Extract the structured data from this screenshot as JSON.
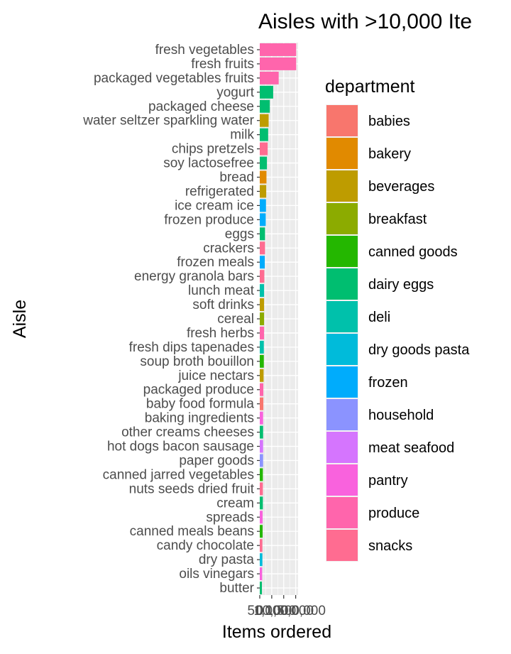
{
  "chart_data": {
    "type": "bar",
    "orientation": "horizontal",
    "title": "Aisles with >10,000 Ite",
    "xlabel": "Items ordered",
    "ylabel": "Aisle",
    "xlim": [
      0,
      1600000
    ],
    "x_ticks": [
      0,
      500000,
      1000000,
      1500000
    ],
    "x_tick_labels": [
      "0",
      "500,000",
      "1,000,000",
      "1,500,000"
    ],
    "grid": true,
    "legend": {
      "title": "department",
      "position": "right",
      "items": [
        {
          "label": "babies",
          "color": "#F8766D"
        },
        {
          "label": "bakery",
          "color": "#E18A00"
        },
        {
          "label": "beverages",
          "color": "#BE9C00"
        },
        {
          "label": "breakfast",
          "color": "#8CAB00"
        },
        {
          "label": "canned goods",
          "color": "#24B700"
        },
        {
          "label": "dairy eggs",
          "color": "#00BE70"
        },
        {
          "label": "deli",
          "color": "#00C1AB"
        },
        {
          "label": "dry goods pasta",
          "color": "#00BBDA"
        },
        {
          "label": "frozen",
          "color": "#00ACFC"
        },
        {
          "label": "household",
          "color": "#8B93FF"
        },
        {
          "label": "meat seafood",
          "color": "#D575FE"
        },
        {
          "label": "pantry",
          "color": "#F962DD"
        },
        {
          "label": "produce",
          "color": "#FF65AC"
        },
        {
          "label": "snacks",
          "color": "#FF6C91"
        }
      ]
    },
    "bars": [
      {
        "aisle": "fresh vegetables",
        "department": "produce",
        "value": 1520000
      },
      {
        "aisle": "fresh fruits",
        "department": "produce",
        "value": 1520000
      },
      {
        "aisle": "packaged vegetables fruits",
        "department": "produce",
        "value": 790000
      },
      {
        "aisle": "yogurt",
        "department": "dairy eggs",
        "value": 560000
      },
      {
        "aisle": "packaged cheese",
        "department": "dairy eggs",
        "value": 420000
      },
      {
        "aisle": "water seltzer sparkling water",
        "department": "beverages",
        "value": 370000
      },
      {
        "aisle": "milk",
        "department": "dairy eggs",
        "value": 350000
      },
      {
        "aisle": "chips pretzels",
        "department": "snacks",
        "value": 330000
      },
      {
        "aisle": "soy lactosefree",
        "department": "dairy eggs",
        "value": 300000
      },
      {
        "aisle": "bread",
        "department": "bakery",
        "value": 280000
      },
      {
        "aisle": "refrigerated",
        "department": "beverages",
        "value": 270000
      },
      {
        "aisle": "ice cream ice",
        "department": "frozen",
        "value": 260000
      },
      {
        "aisle": "frozen produce",
        "department": "frozen",
        "value": 250000
      },
      {
        "aisle": "eggs",
        "department": "dairy eggs",
        "value": 220000
      },
      {
        "aisle": "crackers",
        "department": "snacks",
        "value": 220000
      },
      {
        "aisle": "frozen meals",
        "department": "frozen",
        "value": 210000
      },
      {
        "aisle": "energy granola bars",
        "department": "snacks",
        "value": 190000
      },
      {
        "aisle": "lunch meat",
        "department": "deli",
        "value": 180000
      },
      {
        "aisle": "soft drinks",
        "department": "beverages",
        "value": 180000
      },
      {
        "aisle": "cereal",
        "department": "breakfast",
        "value": 180000
      },
      {
        "aisle": "fresh herbs",
        "department": "produce",
        "value": 180000
      },
      {
        "aisle": "fresh dips tapenades",
        "department": "deli",
        "value": 170000
      },
      {
        "aisle": "soup broth bouillon",
        "department": "canned goods",
        "value": 170000
      },
      {
        "aisle": "juice nectars",
        "department": "beverages",
        "value": 160000
      },
      {
        "aisle": "packaged produce",
        "department": "produce",
        "value": 150000
      },
      {
        "aisle": "baby food formula",
        "department": "babies",
        "value": 150000
      },
      {
        "aisle": "baking ingredients",
        "department": "pantry",
        "value": 140000
      },
      {
        "aisle": "other creams cheeses",
        "department": "dairy eggs",
        "value": 140000
      },
      {
        "aisle": "hot dogs bacon sausage",
        "department": "meat seafood",
        "value": 140000
      },
      {
        "aisle": "paper goods",
        "department": "household",
        "value": 140000
      },
      {
        "aisle": "canned jarred vegetables",
        "department": "canned goods",
        "value": 130000
      },
      {
        "aisle": "nuts seeds dried fruit",
        "department": "snacks",
        "value": 130000
      },
      {
        "aisle": "cream",
        "department": "dairy eggs",
        "value": 130000
      },
      {
        "aisle": "spreads",
        "department": "pantry",
        "value": 120000
      },
      {
        "aisle": "canned meals beans",
        "department": "canned goods",
        "value": 120000
      },
      {
        "aisle": "candy chocolate",
        "department": "snacks",
        "value": 110000
      },
      {
        "aisle": "dry pasta",
        "department": "dry goods pasta",
        "value": 110000
      },
      {
        "aisle": "oils vinegars",
        "department": "pantry",
        "value": 100000
      },
      {
        "aisle": "butter",
        "department": "dairy eggs",
        "value": 90000
      }
    ]
  }
}
